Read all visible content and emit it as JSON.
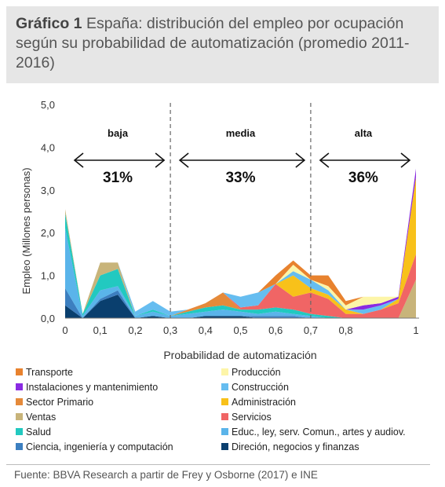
{
  "header": {
    "title_bold": "Gráfico 1",
    "title_rest": " España: distribución del empleo por ocupación según su probabilidad de automatización (promedio 2011-2016)"
  },
  "footer": {
    "source": "Fuente: BBVA Research a partir de Frey y Osborne (2017) e INE"
  },
  "chart_data": {
    "type": "area",
    "ylabel": "Empleo (Millones personas)",
    "xlabel": "Probabilidad de automatización",
    "xlim": [
      0,
      1
    ],
    "ylim": [
      0,
      5
    ],
    "x_ticks": [
      "0",
      "0,1",
      "0,2",
      "0,3",
      "0,4",
      "0,5",
      "0,6",
      "0,7",
      "0,8",
      "1"
    ],
    "y_ticks": [
      "0,0",
      "1,0",
      "2,0",
      "3,0",
      "4,0",
      "5,0"
    ],
    "zones": [
      {
        "label": "baja",
        "pct": "31%"
      },
      {
        "label": "media",
        "pct": "33%"
      },
      {
        "label": "alta",
        "pct": "36%"
      }
    ],
    "zone_dividers_x": [
      0.3,
      0.7
    ],
    "x": [
      0,
      0.05,
      0.1,
      0.15,
      0.2,
      0.25,
      0.3,
      0.35,
      0.4,
      0.45,
      0.5,
      0.55,
      0.6,
      0.65,
      0.7,
      0.75,
      0.8,
      0.85,
      0.9,
      0.95,
      1.0
    ],
    "series": [
      {
        "name": "Direción, negocios y finanzas",
        "color": "#0a3f6e",
        "values": [
          0.3,
          0.0,
          0.4,
          0.55,
          0.0,
          0.05,
          0.0,
          0.0,
          0.05,
          0.05,
          0.05,
          0.0,
          0.0,
          0.0,
          0.0,
          0.0,
          0.0,
          0.0,
          0.0,
          0.0,
          0.0
        ]
      },
      {
        "name": "Ciencia, ingeniería y computación",
        "color": "#3c7fc0",
        "values": [
          0.4,
          0.0,
          0.05,
          0.1,
          0.0,
          0.0,
          0.0,
          0.0,
          0.0,
          0.0,
          0.0,
          0.05,
          0.05,
          0.05,
          0.0,
          0.0,
          0.0,
          0.0,
          0.0,
          0.0,
          0.0
        ]
      },
      {
        "name": "Educ., ley, serv. Comun., artes y audiov.",
        "color": "#5ab4ea",
        "values": [
          1.4,
          0.05,
          0.2,
          0.1,
          0.05,
          0.1,
          0.05,
          0.1,
          0.1,
          0.15,
          0.1,
          0.05,
          0.1,
          0.05,
          0.05,
          0.0,
          0.0,
          0.0,
          0.0,
          0.0,
          0.0
        ]
      },
      {
        "name": "Salud",
        "color": "#22c9c0",
        "values": [
          0.35,
          0.05,
          0.35,
          0.4,
          0.0,
          0.05,
          0.0,
          0.05,
          0.1,
          0.1,
          0.05,
          0.1,
          0.1,
          0.1,
          0.05,
          0.05,
          0.0,
          0.0,
          0.0,
          0.0,
          0.0
        ]
      },
      {
        "name": "Ventas",
        "color": "#c8b47a",
        "values": [
          0.1,
          0.0,
          0.3,
          0.15,
          0.0,
          0.0,
          0.0,
          0.0,
          0.0,
          0.0,
          0.0,
          0.0,
          0.0,
          0.0,
          0.0,
          0.0,
          0.0,
          0.0,
          0.0,
          0.0,
          0.9
        ]
      },
      {
        "name": "Sector Primario",
        "color": "#e58a3a",
        "values": [
          0.0,
          0.0,
          0.0,
          0.0,
          0.0,
          0.0,
          0.0,
          0.05,
          0.1,
          0.3,
          0.0,
          0.0,
          0.0,
          0.0,
          0.0,
          0.0,
          0.0,
          0.0,
          0.0,
          0.0,
          0.0
        ]
      },
      {
        "name": "Servicios",
        "color": "#f06565",
        "values": [
          0.0,
          0.0,
          0.0,
          0.0,
          0.0,
          0.0,
          0.0,
          0.0,
          0.0,
          0.0,
          0.05,
          0.1,
          0.55,
          0.3,
          0.5,
          0.4,
          0.1,
          0.1,
          0.2,
          0.35,
          0.6
        ]
      },
      {
        "name": "Administración",
        "color": "#f8c11a",
        "values": [
          0.0,
          0.0,
          0.0,
          0.0,
          0.0,
          0.0,
          0.0,
          0.0,
          0.0,
          0.0,
          0.0,
          0.0,
          0.0,
          0.5,
          0.1,
          0.1,
          0.1,
          0.0,
          0.0,
          0.1,
          1.8
        ]
      },
      {
        "name": "Construcción",
        "color": "#66bdf0",
        "values": [
          0.0,
          0.0,
          0.0,
          0.0,
          0.1,
          0.2,
          0.1,
          0.0,
          0.0,
          0.0,
          0.25,
          0.3,
          0.0,
          0.1,
          0.2,
          0.1,
          0.0,
          0.1,
          0.1,
          0.0,
          0.0
        ]
      },
      {
        "name": "Instalaciones y mantenimiento",
        "color": "#8a2be2",
        "values": [
          0.0,
          0.0,
          0.0,
          0.0,
          0.0,
          0.0,
          0.0,
          0.0,
          0.0,
          0.0,
          0.0,
          0.0,
          0.0,
          0.0,
          0.0,
          0.0,
          0.0,
          0.1,
          0.05,
          0.05,
          0.2
        ]
      },
      {
        "name": "Producción",
        "color": "#fdf5a8",
        "values": [
          0.0,
          0.0,
          0.0,
          0.0,
          0.0,
          0.0,
          0.0,
          0.0,
          0.0,
          0.0,
          0.0,
          0.0,
          0.0,
          0.15,
          0.0,
          0.1,
          0.1,
          0.2,
          0.15,
          0.0,
          0.0
        ]
      },
      {
        "name": "Transporte",
        "color": "#e8822e",
        "values": [
          0.0,
          0.0,
          0.0,
          0.0,
          0.0,
          0.0,
          0.0,
          0.0,
          0.0,
          0.0,
          0.0,
          0.0,
          0.2,
          0.1,
          0.1,
          0.25,
          0.1,
          0.0,
          0.0,
          0.0,
          0.0
        ]
      }
    ],
    "legend_order": [
      "Transporte",
      "Producción",
      "Instalaciones y mantenimiento",
      "Construcción",
      "Sector Primario",
      "Administración",
      "Ventas",
      "Servicios",
      "Salud",
      "Educ., ley, serv. Comun., artes y audiov.",
      "Ciencia, ingeniería y computación",
      "Direción, negocios y finanzas"
    ],
    "legend_placement": "bottom",
    "grid": false
  }
}
